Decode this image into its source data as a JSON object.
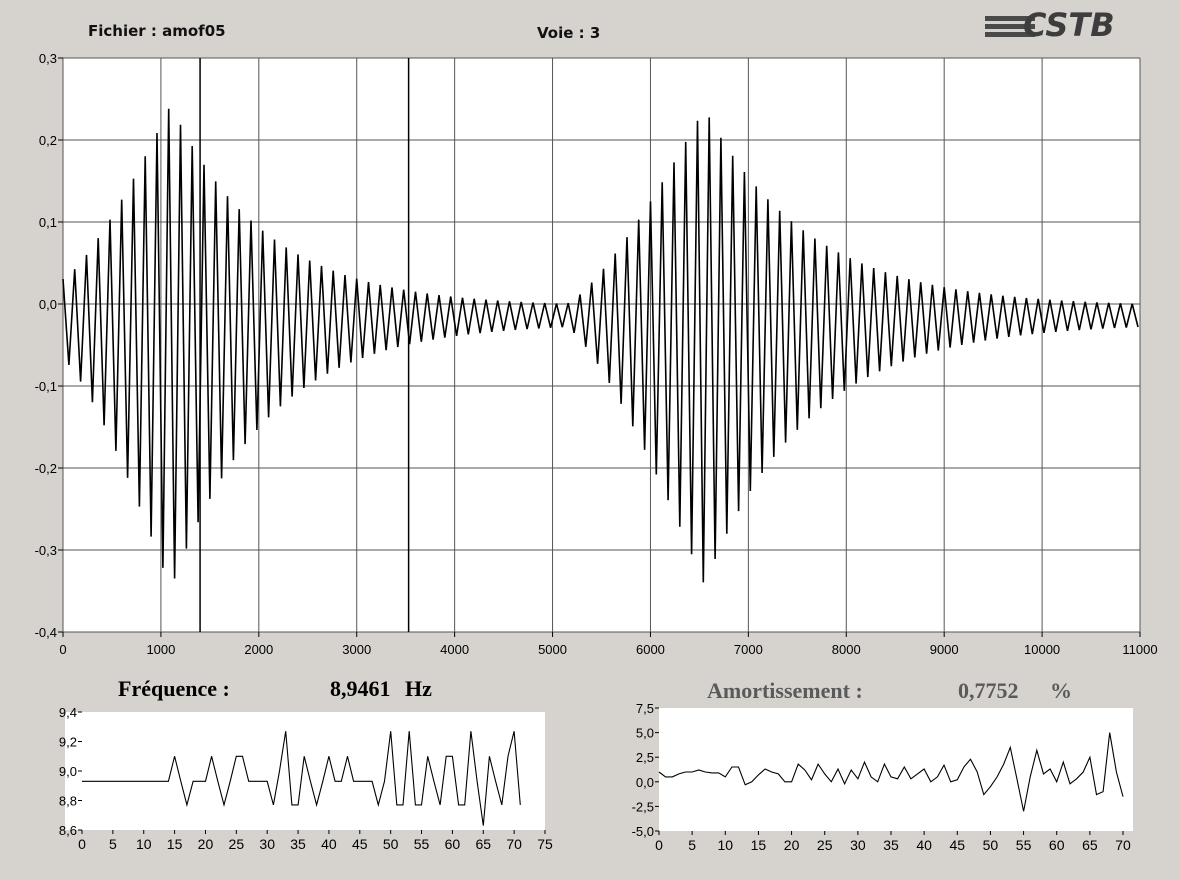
{
  "header": {
    "fichier_label": "Fichier : amof05",
    "voie_label": "Voie : 3",
    "logo_text": "CSTB"
  },
  "readouts": {
    "frequence_label": "Fréquence :",
    "frequence_value": "8,9461",
    "frequence_unit": "Hz",
    "amortissement_label": "Amortissement :",
    "amortissement_value": "0,7752",
    "amortissement_unit": "%"
  },
  "colors": {
    "background": "#d6d3ce",
    "plot_bg": "#ffffff",
    "grid": "#555555",
    "trace": "#000000",
    "amort_text": "#5a5a5a"
  },
  "chart_data": [
    {
      "type": "line",
      "xlim": [
        0,
        11000
      ],
      "ylim": [
        -0.4,
        0.3
      ],
      "x_ticks": [
        "0",
        "1000",
        "2000",
        "3000",
        "4000",
        "5000",
        "6000",
        "7000",
        "8000",
        "9000",
        "10000",
        "11000"
      ],
      "y_ticks": [
        "0,3",
        "0,2",
        "0,1",
        "0,0",
        "-0,1",
        "-0,2",
        "-0,3",
        "-0,4"
      ],
      "y_tick_values": [
        0.3,
        0.2,
        0.1,
        0.0,
        -0.1,
        -0.2,
        -0.3,
        -0.4
      ],
      "grid": true,
      "markers_x": [
        1400,
        3530
      ],
      "envelope_segments": [
        {
          "x0": 0,
          "x1": 5150,
          "peak_x": 1100,
          "center": -0.012,
          "peak_amp": 0.3,
          "start_amp": 0.05,
          "end_amp": 0.01
        },
        {
          "x0": 5150,
          "x1": 11000,
          "peak_x": 6550,
          "center": -0.012,
          "peak_amp": 0.295,
          "start_amp": 0.015,
          "end_amp": 0.01
        }
      ]
    },
    {
      "type": "line",
      "xlim": [
        0,
        75
      ],
      "ylim": [
        8.6,
        9.4
      ],
      "x_ticks": [
        "0",
        "5",
        "10",
        "15",
        "20",
        "25",
        "30",
        "35",
        "40",
        "45",
        "50",
        "55",
        "60",
        "65",
        "70",
        "75"
      ],
      "y_ticks": [
        "9,4",
        "9,2",
        "9,0",
        "8,8",
        "8,6"
      ],
      "y_tick_values": [
        9.4,
        9.2,
        9.0,
        8.8,
        8.6
      ],
      "x": [
        0,
        1,
        2,
        3,
        4,
        5,
        6,
        7,
        8,
        9,
        10,
        11,
        12,
        13,
        14,
        15,
        16,
        17,
        18,
        19,
        20,
        21,
        22,
        23,
        24,
        25,
        26,
        27,
        28,
        29,
        30,
        31,
        32,
        33,
        34,
        35,
        36,
        37,
        38,
        39,
        40,
        41,
        42,
        43,
        44,
        45,
        46,
        47,
        48,
        49,
        50,
        51,
        52,
        53,
        54,
        55,
        56,
        57,
        58,
        59,
        60,
        61,
        62,
        63,
        64,
        65,
        66,
        67,
        68,
        69,
        70,
        71
      ],
      "values": [
        8.93,
        8.93,
        8.93,
        8.93,
        8.93,
        8.93,
        8.93,
        8.93,
        8.93,
        8.93,
        8.93,
        8.93,
        8.93,
        8.93,
        8.93,
        9.1,
        8.93,
        8.77,
        8.93,
        8.93,
        8.93,
        9.1,
        8.93,
        8.77,
        8.93,
        9.1,
        9.1,
        8.93,
        8.93,
        8.93,
        8.93,
        8.77,
        9.0,
        9.27,
        8.77,
        8.77,
        9.1,
        8.93,
        8.77,
        8.93,
        9.1,
        8.93,
        8.93,
        9.1,
        8.93,
        8.93,
        8.93,
        8.93,
        8.77,
        8.93,
        9.27,
        8.77,
        8.77,
        9.27,
        8.77,
        8.77,
        9.1,
        8.93,
        8.77,
        9.1,
        9.1,
        8.77,
        8.77,
        9.27,
        8.93,
        8.63,
        9.1,
        8.93,
        8.77,
        9.1,
        9.27,
        8.77
      ]
    },
    {
      "type": "line",
      "xlim": [
        0,
        70
      ],
      "ylim": [
        -5.0,
        7.5
      ],
      "x_ticks": [
        "0",
        "5",
        "10",
        "15",
        "20",
        "25",
        "30",
        "35",
        "40",
        "45",
        "50",
        "55",
        "60",
        "65",
        "70"
      ],
      "y_ticks": [
        "7,5",
        "5,0",
        "2,5",
        "0,0",
        "-2,5",
        "-5,0"
      ],
      "y_tick_values": [
        7.5,
        5.0,
        2.5,
        0.0,
        -2.5,
        -5.0
      ],
      "x": [
        0,
        1,
        2,
        3,
        4,
        5,
        6,
        7,
        8,
        9,
        10,
        11,
        12,
        13,
        14,
        15,
        16,
        17,
        18,
        19,
        20,
        21,
        22,
        23,
        24,
        25,
        26,
        27,
        28,
        29,
        30,
        31,
        32,
        33,
        34,
        35,
        36,
        37,
        38,
        39,
        40,
        41,
        42,
        43,
        44,
        45,
        46,
        47,
        48,
        49,
        50,
        51,
        52,
        53,
        54,
        55,
        56,
        57,
        58,
        59,
        60,
        61,
        62,
        63,
        64,
        65,
        66,
        67,
        68,
        69,
        70
      ],
      "values": [
        1.0,
        0.5,
        0.5,
        0.8,
        1.0,
        1.0,
        1.2,
        1.0,
        0.9,
        0.9,
        0.5,
        1.5,
        1.5,
        -0.3,
        0.0,
        0.7,
        1.3,
        1.0,
        0.8,
        0.0,
        0.0,
        1.8,
        1.2,
        0.2,
        1.8,
        0.8,
        0.0,
        1.3,
        -0.2,
        1.2,
        0.3,
        2.0,
        0.5,
        0.0,
        1.8,
        0.5,
        0.3,
        1.5,
        0.3,
        0.8,
        1.3,
        0.0,
        0.5,
        1.7,
        0.0,
        0.2,
        1.5,
        2.3,
        1.0,
        -1.3,
        -0.5,
        0.5,
        1.8,
        3.5,
        0.3,
        -3.0,
        0.5,
        3.2,
        0.8,
        1.3,
        0.0,
        2.0,
        -0.2,
        0.3,
        1.0,
        2.5,
        -1.3,
        -1.0,
        5.0,
        1.0,
        -1.5
      ]
    }
  ]
}
